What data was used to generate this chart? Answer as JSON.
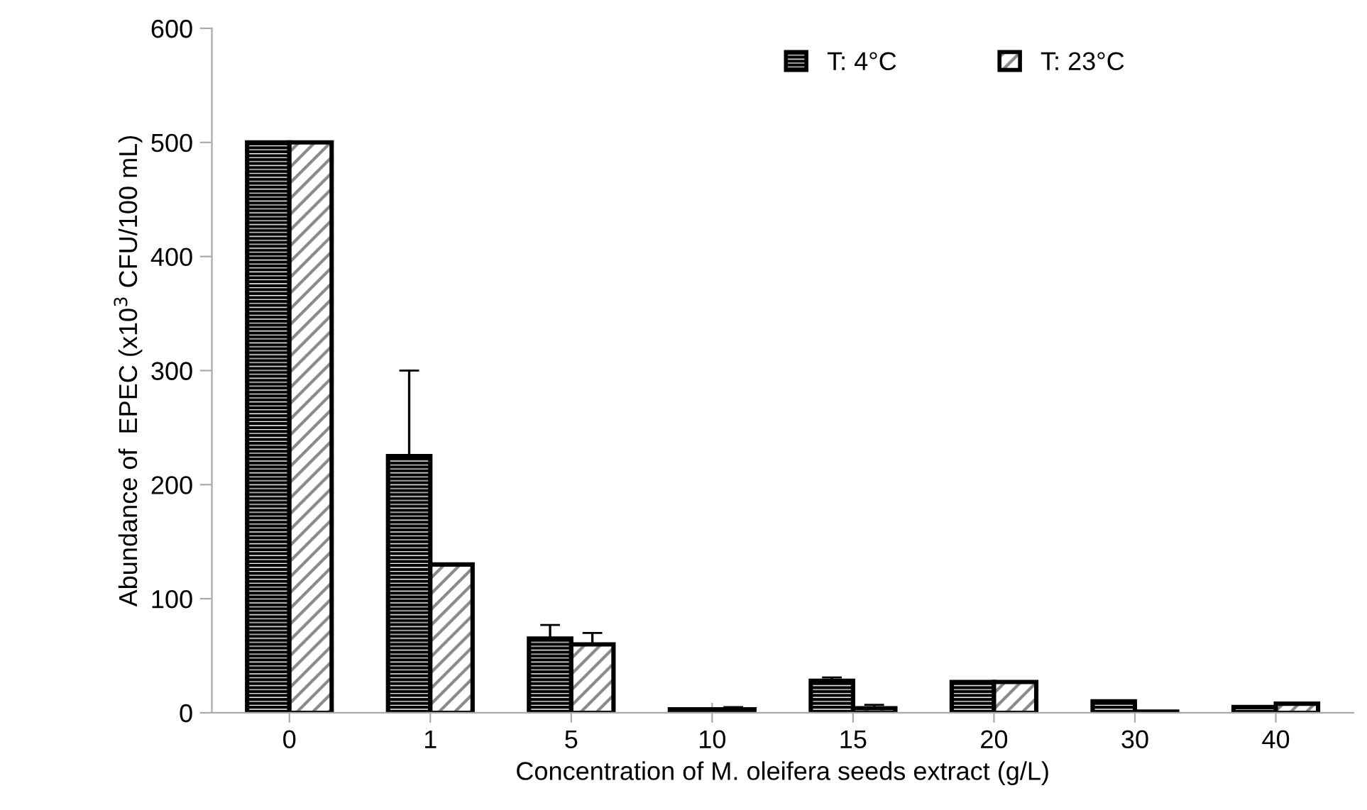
{
  "chart_data": {
    "type": "bar",
    "xlabel": "Concentration of M. oleifera seeds extract (g/L)",
    "ylabel": "Abundance of  EPEC (x10$^{3}$ CFU/100 mL)",
    "categories": [
      "0",
      "1",
      "5",
      "10",
      "15",
      "20",
      "30",
      "40"
    ],
    "series": [
      {
        "name": "T: 4°C",
        "color": "#000000",
        "values": [
          500,
          225,
          65,
          3,
          28,
          27,
          10,
          5
        ],
        "errors": [
          null,
          75,
          12,
          null,
          3,
          null,
          null,
          null
        ]
      },
      {
        "name": "T: 23°C",
        "color": "#000000",
        "values": [
          500,
          130,
          60,
          3,
          4,
          27,
          1,
          8
        ],
        "errors": [
          null,
          null,
          10,
          2,
          3,
          null,
          null,
          null
        ]
      }
    ],
    "ylim": [
      0,
      600
    ],
    "yticks": [
      0,
      100,
      200,
      300,
      400,
      500,
      600
    ],
    "grid": false,
    "legend": "top right"
  }
}
